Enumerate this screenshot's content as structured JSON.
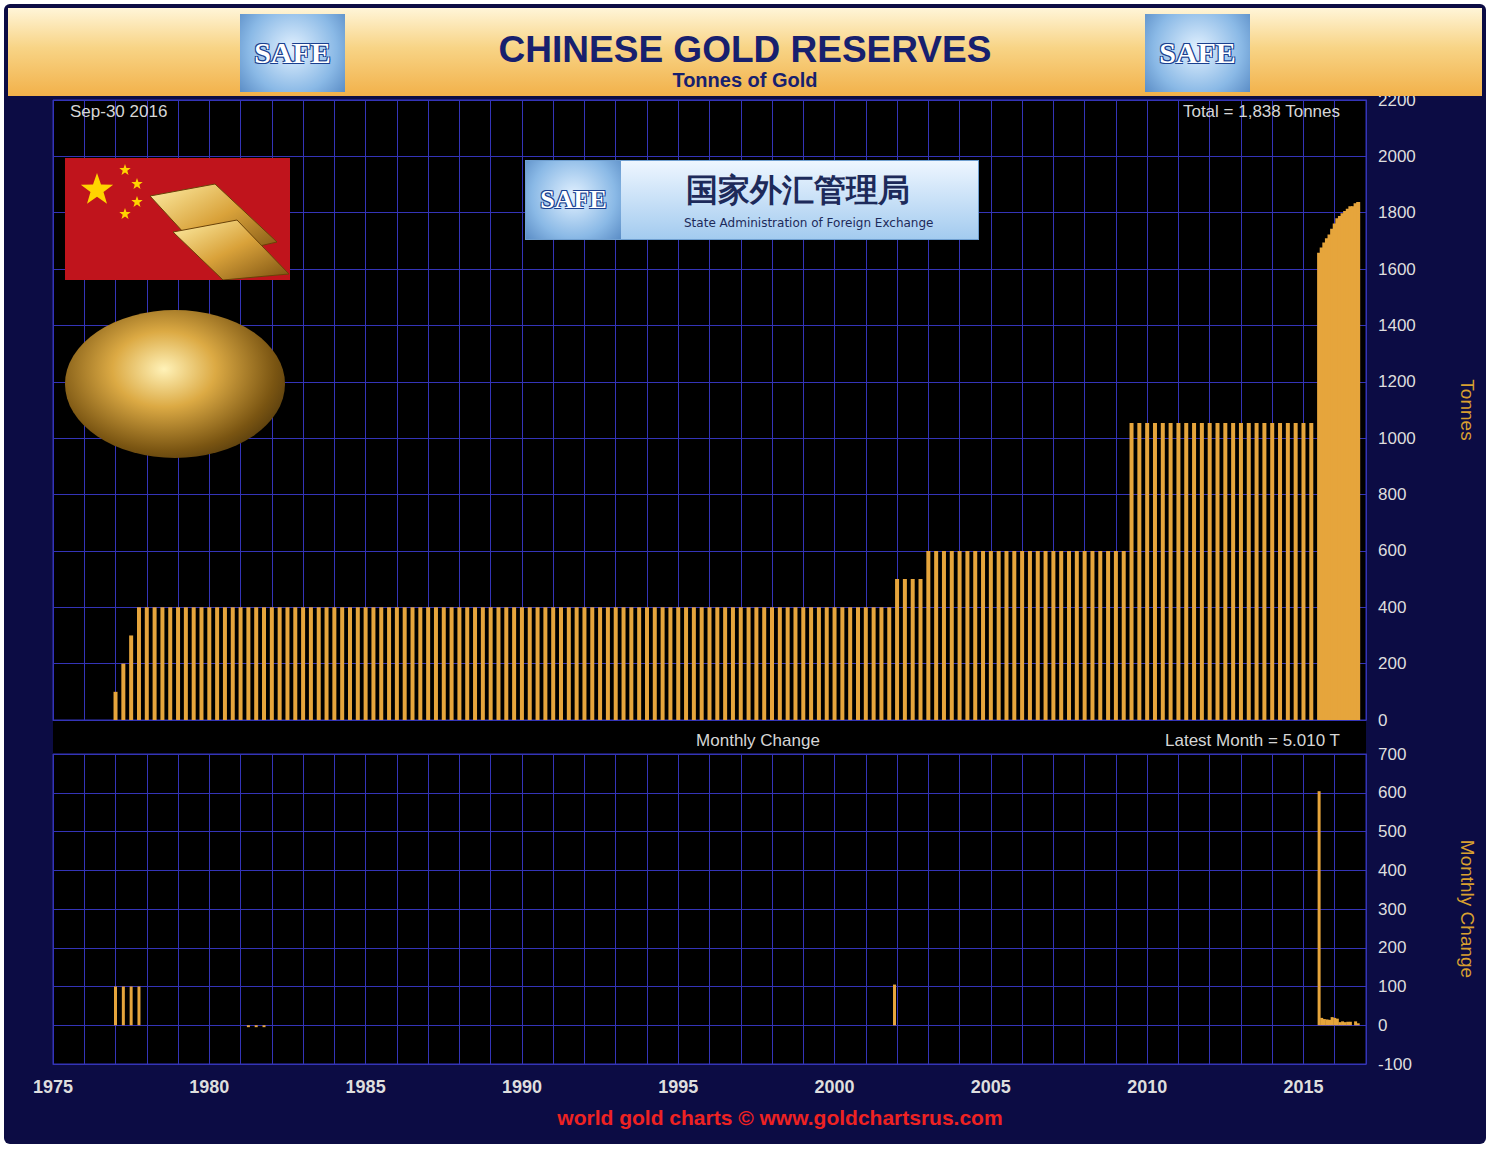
{
  "chart_data": [
    {
      "type": "bar",
      "title": "CHINESE GOLD RESERVES",
      "subtitle": "Tonnes of Gold",
      "annotations": [
        "Sep-30 2016",
        "Total = 1,838 Tonnes"
      ],
      "y_label": "Tonnes",
      "color": "#e6a53c",
      "grid": true,
      "tick_labels": "y",
      "xlim": [
        1975,
        2017
      ],
      "xticks": [
        1975,
        1980,
        1985,
        1990,
        1995,
        2000,
        2005,
        2010,
        2015
      ],
      "ylim": [
        0,
        2200
      ],
      "yticks": [
        0,
        200,
        400,
        600,
        800,
        1000,
        1200,
        1400,
        1600,
        1800,
        2000,
        2200
      ],
      "x": [
        1977,
        1977.25,
        1977.5,
        1977.75,
        1978,
        1978.25,
        1978.5,
        1978.75,
        1979,
        1979.25,
        1979.5,
        1979.75,
        1980,
        1980.25,
        1980.5,
        1980.75,
        1981,
        1981.25,
        1981.5,
        1981.75,
        1982,
        1982.25,
        1982.5,
        1982.75,
        1983,
        1983.25,
        1983.5,
        1983.75,
        1984,
        1984.25,
        1984.5,
        1984.75,
        1985,
        1985.25,
        1985.5,
        1985.75,
        1986,
        1986.25,
        1986.5,
        1986.75,
        1987,
        1987.25,
        1987.5,
        1987.75,
        1988,
        1988.25,
        1988.5,
        1988.75,
        1989,
        1989.25,
        1989.5,
        1989.75,
        1990,
        1990.25,
        1990.5,
        1990.75,
        1991,
        1991.25,
        1991.5,
        1991.75,
        1992,
        1992.25,
        1992.5,
        1992.75,
        1993,
        1993.25,
        1993.5,
        1993.75,
        1994,
        1994.25,
        1994.5,
        1994.75,
        1995,
        1995.25,
        1995.5,
        1995.75,
        1996,
        1996.25,
        1996.5,
        1996.75,
        1997,
        1997.25,
        1997.5,
        1997.75,
        1998,
        1998.25,
        1998.5,
        1998.75,
        1999,
        1999.25,
        1999.5,
        1999.75,
        2000,
        2000.25,
        2000.5,
        2000.75,
        2001,
        2001.25,
        2001.5,
        2001.75,
        2002,
        2002.25,
        2002.5,
        2002.75,
        2003,
        2003.25,
        2003.5,
        2003.75,
        2004,
        2004.25,
        2004.5,
        2004.75,
        2005,
        2005.25,
        2005.5,
        2005.75,
        2006,
        2006.25,
        2006.5,
        2006.75,
        2007,
        2007.25,
        2007.5,
        2007.75,
        2008,
        2008.25,
        2008.5,
        2008.75,
        2009,
        2009.25,
        2009.5,
        2009.75,
        2010,
        2010.25,
        2010.5,
        2010.75,
        2011,
        2011.25,
        2011.5,
        2011.75,
        2012,
        2012.25,
        2012.5,
        2012.75,
        2013,
        2013.25,
        2013.5,
        2013.75,
        2014,
        2014.25,
        2014.5,
        2014.75,
        2015,
        2015.25,
        2015.5,
        2015.583,
        2015.667,
        2015.75,
        2015.833,
        2015.917,
        2016,
        2016.083,
        2016.167,
        2016.25,
        2016.333,
        2016.417,
        2016.5,
        2016.583,
        2016.667,
        2016.75
      ],
      "values": [
        100,
        200,
        300,
        400,
        400,
        400,
        400,
        400,
        400,
        400,
        400,
        400,
        400,
        400,
        400,
        400,
        400,
        400,
        400,
        400,
        400,
        400,
        400,
        400,
        400,
        400,
        400,
        400,
        400,
        400,
        400,
        400,
        400,
        400,
        400,
        400,
        400,
        400,
        400,
        400,
        400,
        400,
        400,
        400,
        400,
        400,
        400,
        400,
        400,
        400,
        400,
        400,
        400,
        400,
        400,
        400,
        400,
        400,
        400,
        400,
        400,
        400,
        400,
        400,
        400,
        400,
        400,
        400,
        400,
        400,
        400,
        400,
        400,
        400,
        400,
        400,
        400,
        400,
        400,
        400,
        400,
        400,
        400,
        400,
        400,
        400,
        400,
        400,
        400,
        400,
        400,
        400,
        400,
        400,
        400,
        400,
        400,
        400,
        400,
        400,
        500,
        500,
        500,
        500,
        600,
        600,
        600,
        600,
        600,
        600,
        600,
        600,
        600,
        600,
        600,
        600,
        600,
        600,
        600,
        600,
        600,
        600,
        600,
        600,
        600,
        600,
        600,
        600,
        600,
        600,
        1054,
        1054,
        1054,
        1054,
        1054,
        1054,
        1054,
        1054,
        1054,
        1054,
        1054,
        1054,
        1054,
        1054,
        1054,
        1054,
        1054,
        1054,
        1054,
        1054,
        1054,
        1054,
        1054,
        1054,
        1658,
        1677,
        1694,
        1709,
        1723,
        1743,
        1762,
        1780,
        1788,
        1798,
        1806,
        1814,
        1823,
        1823,
        1834,
        1838
      ]
    },
    {
      "type": "bar",
      "title": "Monthly Change",
      "annotations": [
        "Latest Month = 5.010 T"
      ],
      "y_label": "Monthly Change",
      "color": "#e6a53c",
      "grid": true,
      "xlim": [
        1975,
        2017
      ],
      "xticks": [
        1975,
        1980,
        1985,
        1990,
        1995,
        2000,
        2005,
        2010,
        2015
      ],
      "ylim": [
        -100,
        700
      ],
      "yticks": [
        -100,
        0,
        100,
        200,
        300,
        400,
        500,
        600,
        700
      ],
      "x": [
        1977,
        1977.25,
        1977.5,
        1977.75,
        1981.25,
        1981.5,
        1981.75,
        2001.917,
        2015.5,
        2015.583,
        2015.667,
        2015.75,
        2015.833,
        2015.917,
        2016,
        2016.083,
        2016.167,
        2016.25,
        2016.333,
        2016.417,
        2016.5,
        2016.583,
        2016.667,
        2016.75
      ],
      "values": [
        100,
        100,
        100,
        100,
        -5,
        -5,
        -5,
        105,
        604,
        19,
        16,
        15,
        14,
        21,
        19,
        17,
        8,
        10,
        8,
        9,
        9,
        0,
        10,
        5.01
      ]
    }
  ],
  "logo": {
    "badge": "SAFE",
    "name_zh": "国家外汇管理局",
    "name_en": "State Administration of Foreign Exchange"
  },
  "footer": "world gold charts © www.goldchartsrus.com"
}
